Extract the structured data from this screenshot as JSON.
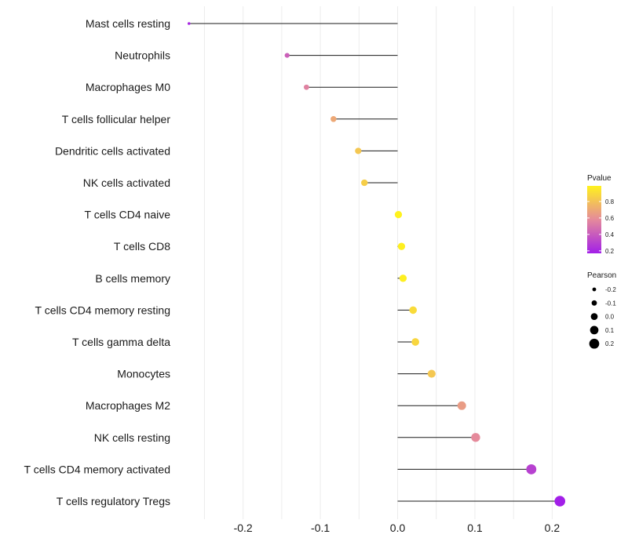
{
  "chart_data": {
    "type": "lollipop",
    "categories": [
      "Mast cells resting",
      "Neutrophils",
      "Macrophages M0",
      "T cells follicular helper",
      "Dendritic cells activated",
      "NK cells activated",
      "T cells CD4 naive",
      "T cells CD8",
      "B cells memory",
      "T cells CD4 memory resting",
      "T cells gamma delta",
      "Monocytes",
      "Macrophages M2",
      "NK cells resting",
      "T cells CD4 memory activated",
      "T cells regulatory  Tregs"
    ],
    "values": [
      -0.27,
      -0.143,
      -0.118,
      -0.083,
      -0.051,
      -0.043,
      0.001,
      0.005,
      0.007,
      0.02,
      0.023,
      0.044,
      0.083,
      0.101,
      0.173,
      0.21
    ],
    "pvalues": [
      0.2,
      0.42,
      0.55,
      0.7,
      0.82,
      0.85,
      0.99,
      0.98,
      0.98,
      0.9,
      0.88,
      0.82,
      0.65,
      0.58,
      0.3,
      0.17
    ],
    "xlim": [
      -0.285,
      0.225
    ],
    "xticks": [
      -0.2,
      -0.1,
      0.0,
      0.1,
      0.2
    ],
    "xtick_labels": [
      "-0.2",
      "-0.1",
      "0.0",
      "0.1",
      "0.2"
    ],
    "grid": true,
    "legend_color": {
      "title": "Pvalue",
      "range": [
        0.17,
        0.99
      ],
      "ticks": [
        0.8,
        0.6,
        0.4,
        0.2
      ],
      "tick_labels": [
        "0.8",
        "0.6",
        "0.4",
        "0.2"
      ],
      "color_low": "#a21fe8",
      "color_mid": "#e58a9b",
      "color_high": "#fff21d"
    },
    "legend_size": {
      "title": "Pearson",
      "values": [
        -0.2,
        -0.1,
        0.0,
        0.1,
        0.2
      ],
      "labels": [
        "-0.2",
        "-0.1",
        "0.0",
        "0.1",
        "0.2"
      ]
    },
    "colors": {
      "stem": "#1a1a1a",
      "grid": "#ececec"
    }
  }
}
